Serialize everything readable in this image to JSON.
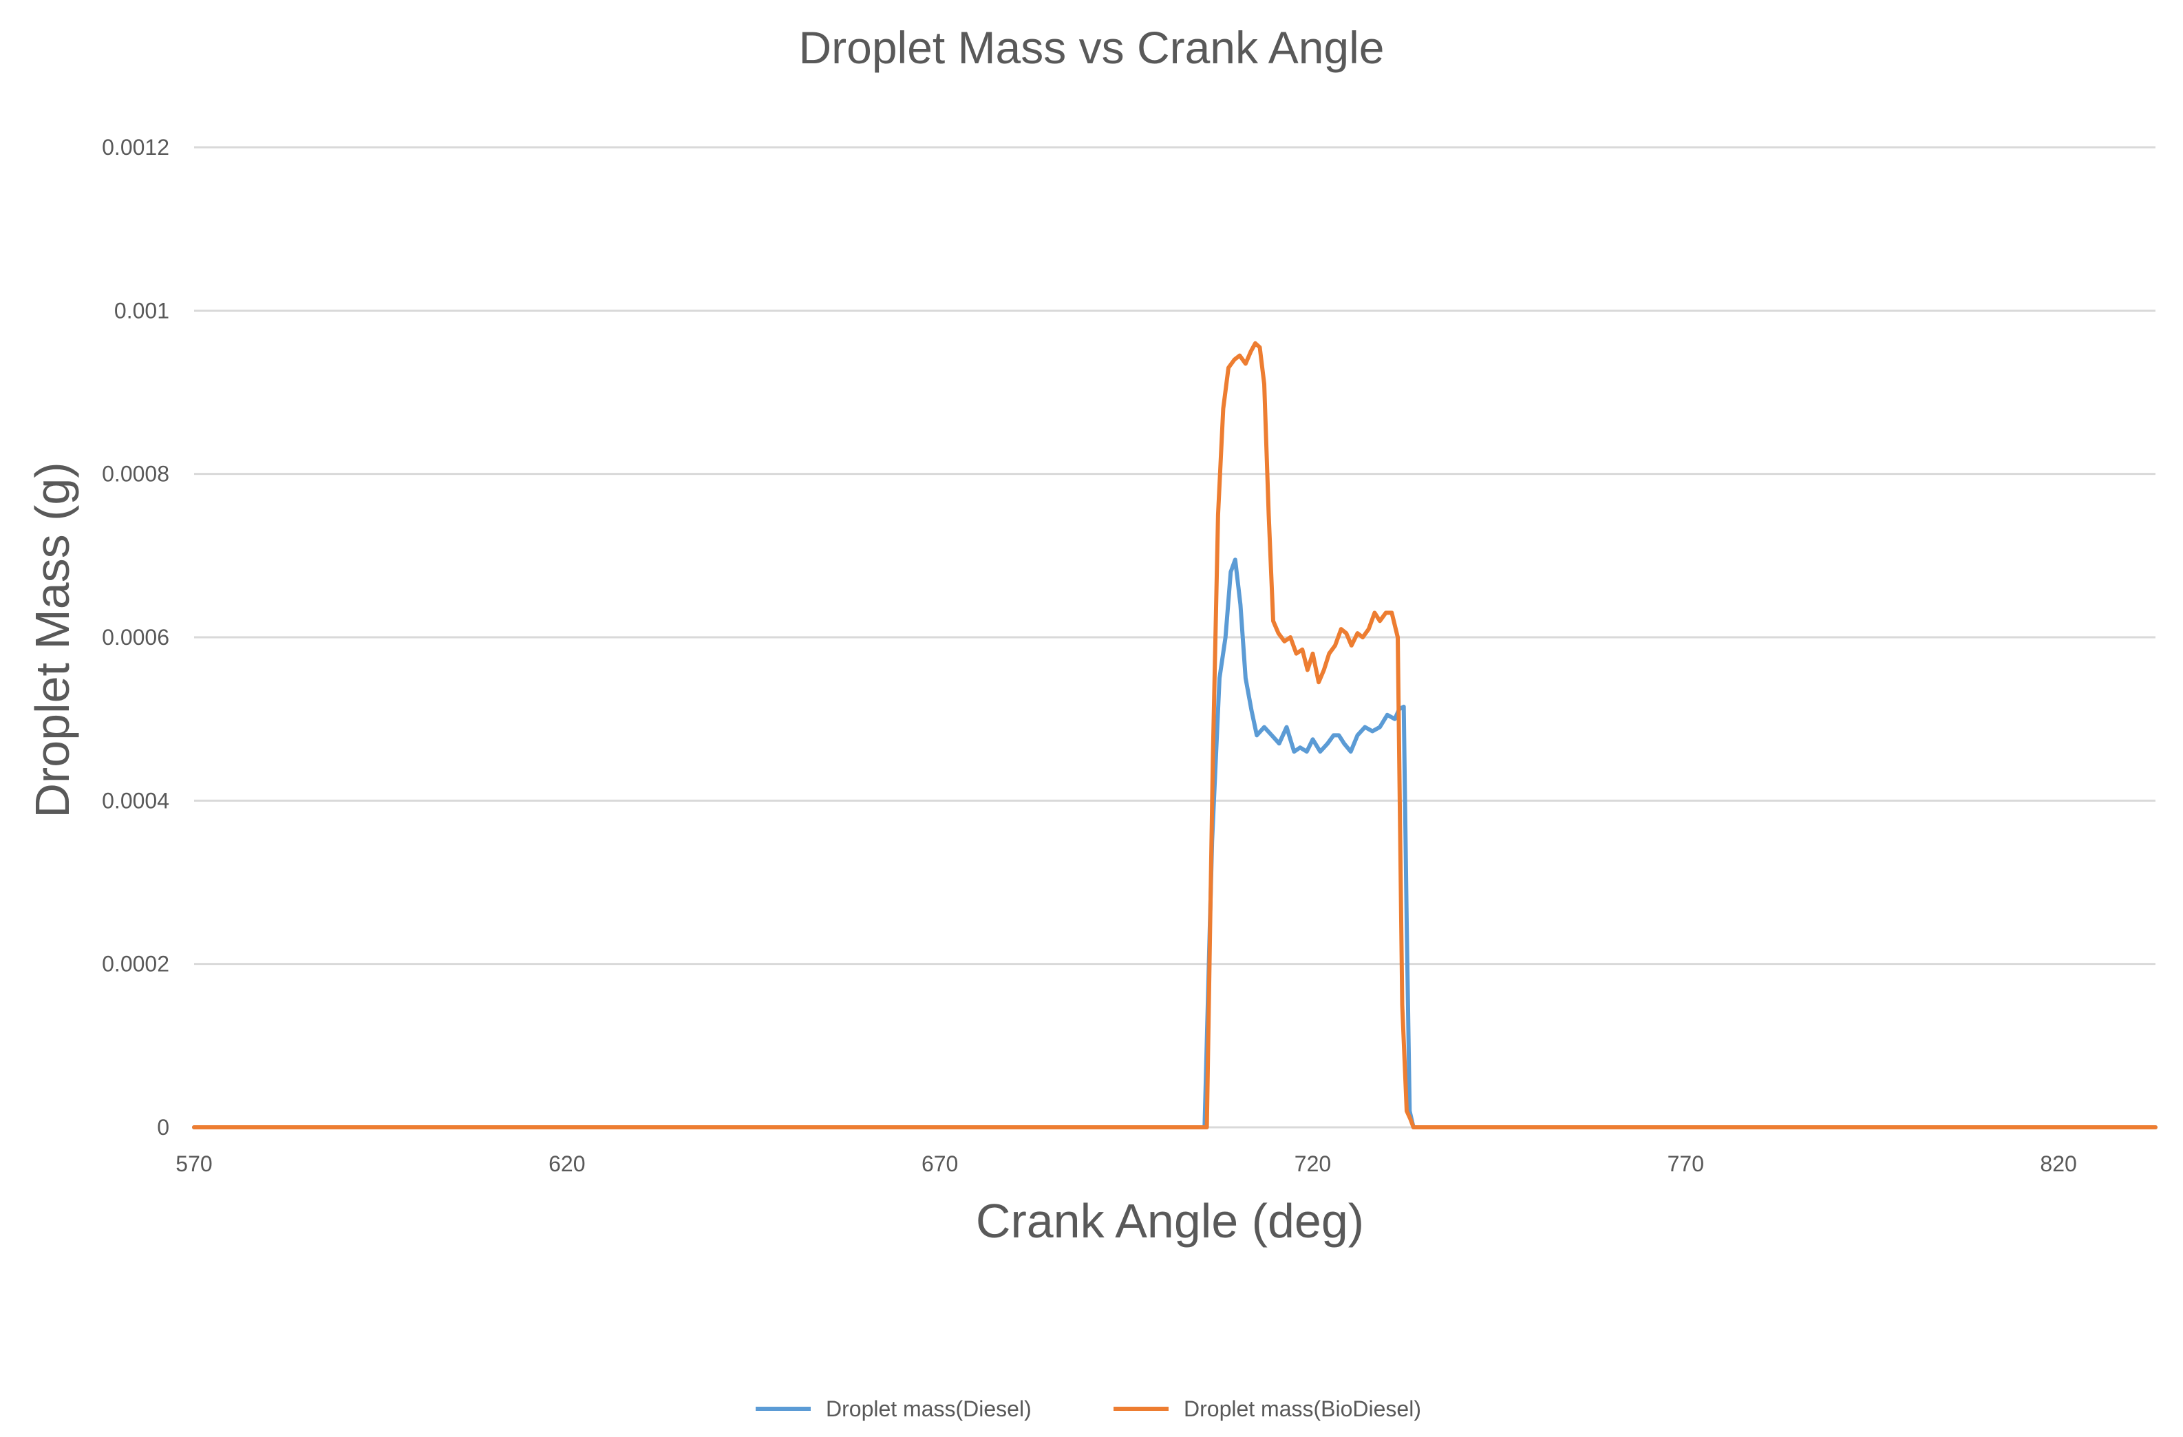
{
  "chart_data": {
    "type": "line",
    "title": "Droplet Mass vs Crank Angle",
    "xlabel": "Crank Angle (deg)",
    "ylabel": "Droplet Mass  (g)",
    "xlim": [
      570,
      833
    ],
    "ylim": [
      0,
      0.0012
    ],
    "x_ticks": [
      "570",
      "620",
      "670",
      "720",
      "770",
      "820"
    ],
    "y_ticks": [
      "0",
      "0.0002",
      "0.0004",
      "0.0006",
      "0.0008",
      "0.001",
      "0.0012"
    ],
    "grid": true,
    "legend_position": "bottom",
    "series": [
      {
        "name": "Droplet mass(Diesel)",
        "color": "#5b9bd5",
        "x": [
          570,
          705.5,
          706.5,
          707.5,
          708.3,
          709,
          709.6,
          710.3,
          711,
          711.8,
          712.5,
          713.5,
          714.5,
          715.5,
          716.5,
          717.5,
          718.3,
          719.2,
          720,
          721,
          722,
          722.8,
          723.5,
          724.2,
          725.1,
          726,
          727,
          728,
          729,
          730,
          731,
          731.6,
          732.2,
          732.6,
          733,
          733.5,
          833
        ],
        "y": [
          0,
          0,
          0.00035,
          0.00055,
          0.0006,
          0.00068,
          0.000695,
          0.00064,
          0.00055,
          0.00051,
          0.00048,
          0.00049,
          0.00048,
          0.00047,
          0.00049,
          0.00046,
          0.000465,
          0.00046,
          0.000475,
          0.00046,
          0.00047,
          0.00048,
          0.00048,
          0.00047,
          0.00046,
          0.00048,
          0.00049,
          0.000485,
          0.00049,
          0.000505,
          0.0005,
          0.000512,
          0.000515,
          0.00025,
          2e-05,
          0,
          0
        ]
      },
      {
        "name": "Droplet mass(BioDiesel)",
        "color": "#ed7d31",
        "x": [
          570,
          705.8,
          706.6,
          707.3,
          708,
          708.7,
          709.5,
          710.2,
          711,
          711.7,
          712.3,
          712.9,
          713.5,
          714.1,
          714.7,
          715.4,
          716.2,
          717,
          717.8,
          718.6,
          719.3,
          720,
          720.8,
          721.5,
          722.2,
          723,
          723.8,
          724.5,
          725.2,
          726,
          726.7,
          727.5,
          728.3,
          729,
          729.8,
          730.6,
          731.4,
          732,
          732.6,
          733.1,
          733.5,
          734.2,
          835
        ],
        "y": [
          0,
          0,
          0.00045,
          0.00075,
          0.00088,
          0.00093,
          0.00094,
          0.000945,
          0.000935,
          0.00095,
          0.00096,
          0.000955,
          0.00091,
          0.00075,
          0.00062,
          0.000605,
          0.000595,
          0.0006,
          0.00058,
          0.000585,
          0.00056,
          0.00058,
          0.000545,
          0.00056,
          0.00058,
          0.00059,
          0.00061,
          0.000605,
          0.00059,
          0.000605,
          0.0006,
          0.00061,
          0.00063,
          0.00062,
          0.00063,
          0.00063,
          0.0006,
          0.00015,
          2e-05,
          1e-05,
          0,
          0,
          0
        ]
      }
    ]
  }
}
